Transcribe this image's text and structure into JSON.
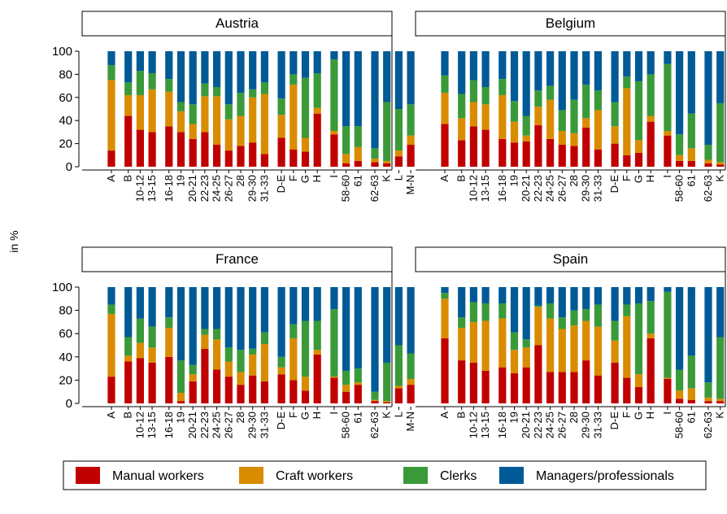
{
  "chart_data": {
    "type": "bar",
    "stacked": true,
    "ylabel": "in %",
    "ylim": [
      0,
      100
    ],
    "yticks": [
      0,
      20,
      40,
      60,
      80,
      100
    ],
    "grid": false,
    "legend_position": "bottom",
    "colors": {
      "Manual workers": "#c00000",
      "Craft workers": "#d98c00",
      "Clerks": "#3a9a3a",
      "Managers/professionals": "#005a96"
    },
    "categories": [
      "A",
      "B",
      "10-12",
      "13-15",
      "16-18",
      "19",
      "20-21",
      "22-23",
      "24-25",
      "26-27",
      "28",
      "29-30",
      "31-33",
      "D-E",
      "F",
      "G",
      "H",
      "I",
      "58-60",
      "61",
      "62-63",
      "K",
      "L",
      "M-N"
    ],
    "series_names": [
      "Manual workers",
      "Craft workers",
      "Clerks",
      "Managers/professionals"
    ],
    "panels": [
      {
        "title": "Austria",
        "series": [
          {
            "name": "Manual workers",
            "values": [
              14,
              44,
              32,
              30,
              35,
              30,
              24,
              30,
              19,
              14,
              18,
              21,
              11,
              25,
              15,
              13,
              46,
              28,
              3,
              5,
              4,
              3,
              9,
              19
            ]
          },
          {
            "name": "Craft workers",
            "values": [
              61,
              18,
              30,
              37,
              30,
              18,
              13,
              31,
              42,
              27,
              26,
              39,
              52,
              20,
              56,
              12,
              5,
              3,
              8,
              12,
              3,
              2,
              5,
              8
            ]
          },
          {
            "name": "Clerks",
            "values": [
              13,
              11,
              21,
              14,
              11,
              8,
              17,
              11,
              8,
              13,
              20,
              7,
              10,
              14,
              9,
              52,
              30,
              62,
              24,
              18,
              9,
              51,
              36,
              27
            ]
          },
          {
            "name": "Managers/professionals",
            "values": [
              12,
              27,
              17,
              19,
              24,
              44,
              46,
              28,
              31,
              46,
              36,
              33,
              27,
              41,
              20,
              23,
              19,
              7,
              65,
              65,
              84,
              44,
              50,
              46
            ]
          }
        ]
      },
      {
        "title": "Belgium",
        "series": [
          {
            "name": "Manual workers",
            "values": [
              37,
              23,
              35,
              32,
              24,
              21,
              22,
              36,
              24,
              19,
              18,
              34,
              15,
              20,
              10,
              12,
              39,
              27,
              5,
              5,
              3,
              2,
              15,
              27
            ]
          },
          {
            "name": "Craft workers",
            "values": [
              27,
              19,
              21,
              22,
              38,
              18,
              5,
              16,
              34,
              12,
              11,
              8,
              34,
              15,
              58,
              11,
              5,
              4,
              5,
              11,
              3,
              2,
              9,
              4
            ]
          },
          {
            "name": "Clerks",
            "values": [
              15,
              21,
              19,
              15,
              14,
              18,
              17,
              14,
              12,
              18,
              29,
              29,
              17,
              21,
              10,
              51,
              36,
              58,
              18,
              30,
              13,
              51,
              33,
              27
            ]
          },
          {
            "name": "Managers/professionals",
            "values": [
              21,
              37,
              25,
              31,
              24,
              43,
              56,
              34,
              30,
              51,
              42,
              29,
              34,
              44,
              22,
              26,
              20,
              11,
              72,
              54,
              81,
              45,
              43,
              42
            ]
          }
        ]
      },
      {
        "title": "France",
        "series": [
          {
            "name": "Manual workers",
            "values": [
              23,
              36,
              39,
              35,
              40,
              2,
              19,
              47,
              29,
              23,
              16,
              24,
              19,
              25,
              20,
              11,
              42,
              22,
              10,
              16,
              2,
              1,
              13,
              16
            ]
          },
          {
            "name": "Craft workers",
            "values": [
              54,
              5,
              13,
              13,
              25,
              7,
              6,
              12,
              26,
              13,
              11,
              18,
              32,
              6,
              36,
              12,
              4,
              1,
              6,
              2,
              1,
              1,
              2,
              5
            ]
          },
          {
            "name": "Clerks",
            "values": [
              8,
              16,
              21,
              18,
              9,
              28,
              8,
              5,
              9,
              12,
              19,
              5,
              10,
              9,
              12,
              48,
              25,
              58,
              12,
              12,
              7,
              33,
              35,
              22
            ]
          },
          {
            "name": "Managers/professionals",
            "values": [
              15,
              43,
              27,
              34,
              26,
              63,
              67,
              36,
              36,
              52,
              54,
              53,
              39,
              60,
              32,
              29,
              29,
              19,
              72,
              70,
              90,
              65,
              50,
              57
            ]
          }
        ]
      },
      {
        "title": "Spain",
        "series": [
          {
            "name": "Manual workers",
            "values": [
              56,
              37,
              35,
              28,
              31,
              26,
              31,
              50,
              27,
              27,
              27,
              37,
              24,
              35,
              22,
              14,
              56,
              21,
              4,
              3,
              2,
              2,
              10,
              26
            ]
          },
          {
            "name": "Craft workers",
            "values": [
              34,
              28,
              35,
              43,
              42,
              20,
              17,
              33,
              46,
              37,
              40,
              34,
              42,
              19,
              53,
              11,
              4,
              1,
              7,
              10,
              3,
              2,
              4,
              6
            ]
          },
          {
            "name": "Clerks",
            "values": [
              5,
              9,
              17,
              15,
              13,
              15,
              7,
              1,
              13,
              10,
              13,
              10,
              19,
              17,
              10,
              61,
              28,
              74,
              18,
              28,
              13,
              53,
              42,
              35
            ]
          },
          {
            "name": "Managers/professionals",
            "values": [
              5,
              26,
              13,
              14,
              14,
              39,
              45,
              16,
              14,
              26,
              20,
              19,
              15,
              29,
              15,
              14,
              12,
              4,
              71,
              59,
              82,
              43,
              44,
              33
            ]
          }
        ]
      }
    ]
  }
}
